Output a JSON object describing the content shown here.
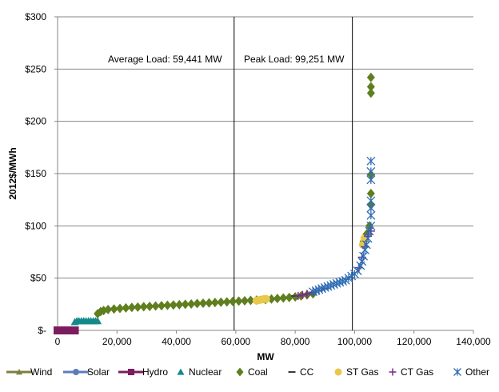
{
  "chart_data": {
    "type": "scatter",
    "title": "",
    "xlabel": "MW",
    "ylabel": "2012$/MWh",
    "xlim": [
      0,
      140000
    ],
    "ylim": [
      0,
      300
    ],
    "x_ticks": [
      0,
      20000,
      40000,
      60000,
      80000,
      100000,
      120000,
      140000
    ],
    "x_tick_labels": [
      "0",
      "20,000",
      "40,000",
      "60,000",
      "80,000",
      "100,000",
      "120,000",
      "140,000"
    ],
    "y_ticks": [
      0,
      50,
      100,
      150,
      200,
      250,
      300
    ],
    "y_tick_labels": [
      "$-",
      "$50",
      "$100",
      "$150",
      "$200",
      "$250",
      "$300"
    ],
    "grid": "horizontal",
    "legend_position": "bottom",
    "annotations": [
      {
        "text": "Average Load: 59,441  MW",
        "x": 59441
      },
      {
        "text": "Peak Load: 99,251  MW",
        "x": 99251
      }
    ],
    "series": [
      {
        "name": "Wind",
        "color": "#7F7F3F",
        "marker": "triangle",
        "line": true,
        "points": [
          [
            0,
            0
          ],
          [
            500,
            0
          ]
        ]
      },
      {
        "name": "Solar",
        "color": "#5B7DBA",
        "marker": "circle",
        "line": true,
        "points": [
          [
            500,
            0
          ],
          [
            700,
            0
          ]
        ]
      },
      {
        "name": "Hydro",
        "color": "#7B1D5F",
        "marker": "square",
        "line": true,
        "points": [
          [
            0,
            0
          ],
          [
            1000,
            0
          ],
          [
            2000,
            0
          ],
          [
            3000,
            0
          ],
          [
            4000,
            0
          ],
          [
            5000,
            0
          ],
          [
            5800,
            0
          ]
        ]
      },
      {
        "name": "Nuclear",
        "color": "#138A8A",
        "marker": "triangle",
        "line": false,
        "points": [
          [
            5800,
            8
          ],
          [
            6500,
            9
          ],
          [
            7200,
            9
          ],
          [
            8000,
            9
          ],
          [
            8800,
            9
          ],
          [
            9600,
            9
          ],
          [
            10400,
            9
          ],
          [
            11200,
            9
          ],
          [
            12000,
            9
          ],
          [
            12800,
            9
          ],
          [
            13500,
            9
          ]
        ]
      },
      {
        "name": "Coal",
        "color": "#5F7F1F",
        "marker": "diamond",
        "line": false,
        "points": [
          [
            13500,
            16
          ],
          [
            14500,
            18
          ],
          [
            15500,
            19
          ],
          [
            17000,
            20
          ],
          [
            19000,
            20.5
          ],
          [
            21000,
            21
          ],
          [
            23000,
            21.5
          ],
          [
            25000,
            22
          ],
          [
            27000,
            22.3
          ],
          [
            29000,
            22.7
          ],
          [
            31000,
            23
          ],
          [
            33000,
            23.3
          ],
          [
            35000,
            23.6
          ],
          [
            37000,
            24
          ],
          [
            39000,
            24.3
          ],
          [
            41000,
            24.6
          ],
          [
            43000,
            25
          ],
          [
            45000,
            25.3
          ],
          [
            47000,
            25.7
          ],
          [
            49000,
            26
          ],
          [
            51000,
            26.3
          ],
          [
            53000,
            26.7
          ],
          [
            55000,
            27
          ],
          [
            57000,
            27.3
          ],
          [
            59000,
            27.7
          ],
          [
            61000,
            28
          ],
          [
            63000,
            28.3
          ],
          [
            65000,
            28.7
          ],
          [
            67000,
            29
          ],
          [
            70000,
            29.5
          ],
          [
            72000,
            30
          ],
          [
            74000,
            30.5
          ],
          [
            76000,
            31
          ],
          [
            78000,
            31.5
          ],
          [
            80000,
            32
          ],
          [
            82000,
            33
          ],
          [
            84000,
            34
          ],
          [
            86000,
            35
          ],
          [
            103000,
            85
          ],
          [
            104000,
            92
          ],
          [
            105000,
            100
          ],
          [
            105500,
            120
          ],
          [
            105500,
            131
          ],
          [
            105500,
            149
          ],
          [
            105500,
            227
          ],
          [
            105500,
            233
          ],
          [
            105500,
            242
          ]
        ]
      },
      {
        "name": "CC",
        "color": "#3C3C3C",
        "marker": "dash",
        "line": false,
        "points": [
          [
            70000,
            30
          ],
          [
            80000,
            33
          ],
          [
            85000,
            35
          ],
          [
            90000,
            40
          ]
        ]
      },
      {
        "name": "ST Gas",
        "color": "#E8C84A",
        "marker": "circle",
        "line": false,
        "points": [
          [
            67000,
            28.5
          ],
          [
            67800,
            29
          ],
          [
            68600,
            29.5
          ],
          [
            69400,
            29.8
          ],
          [
            70200,
            30
          ],
          [
            102800,
            82
          ],
          [
            103300,
            88
          ]
        ]
      },
      {
        "name": "CT Gas",
        "color": "#7B2A8B",
        "marker": "plus",
        "line": false,
        "points": [
          [
            81000,
            33
          ],
          [
            82500,
            34
          ],
          [
            84000,
            35
          ],
          [
            86000,
            36.5
          ],
          [
            88000,
            38
          ],
          [
            101500,
            60
          ],
          [
            102500,
            70
          ],
          [
            103500,
            80
          ],
          [
            104500,
            90
          ],
          [
            105500,
            95
          ]
        ]
      },
      {
        "name": "Other",
        "color": "#2F6DB5",
        "marker": "asterisk",
        "line": false,
        "points": [
          [
            86000,
            37
          ],
          [
            87000,
            38
          ],
          [
            88000,
            39
          ],
          [
            89000,
            40
          ],
          [
            90000,
            41
          ],
          [
            91000,
            42
          ],
          [
            92000,
            43
          ],
          [
            93000,
            44
          ],
          [
            94000,
            45
          ],
          [
            95000,
            46
          ],
          [
            96000,
            47
          ],
          [
            97000,
            48
          ],
          [
            98000,
            50
          ],
          [
            99000,
            52
          ],
          [
            100000,
            54
          ],
          [
            101000,
            57
          ],
          [
            102000,
            62
          ],
          [
            102500,
            66
          ],
          [
            103000,
            71
          ],
          [
            103500,
            77
          ],
          [
            104000,
            82
          ],
          [
            104500,
            88
          ],
          [
            105000,
            95
          ],
          [
            105500,
            100
          ],
          [
            105500,
            110
          ],
          [
            105500,
            117
          ],
          [
            105500,
            124
          ],
          [
            105500,
            144
          ],
          [
            105500,
            152
          ],
          [
            105500,
            162
          ]
        ]
      }
    ]
  }
}
